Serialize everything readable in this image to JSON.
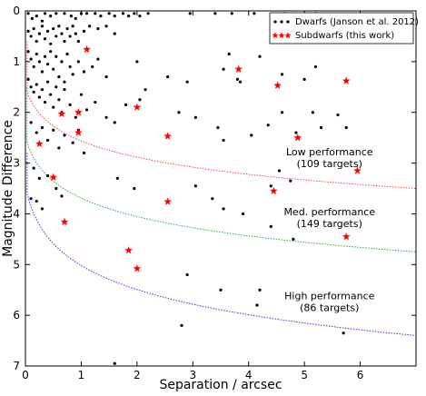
{
  "chart_data": {
    "type": "scatter",
    "title": "",
    "xlabel": "Separation / arcsec",
    "ylabel": "Magnitude Difference",
    "xlim": [
      0,
      7
    ],
    "ylim": [
      0,
      7
    ],
    "y_inverted": true,
    "x_ticks": [
      0,
      1,
      2,
      3,
      4,
      5,
      6
    ],
    "y_ticks": [
      0,
      1,
      2,
      3,
      4,
      5,
      6,
      7
    ],
    "grid": false,
    "legend_placement": "top-right",
    "legend": [
      {
        "label": "Dwarfs (Janson et al. 2012)",
        "marker": "dot",
        "color": "#000000"
      },
      {
        "label": "Subdwarfs (this work)",
        "marker": "star",
        "color": "#ff0000"
      }
    ],
    "series": [
      {
        "name": "Dwarfs (Janson et al. 2012)",
        "marker": "dot",
        "color": "#000000",
        "points": [
          [
            0.05,
            0.05
          ],
          [
            0.12,
            0.15
          ],
          [
            0.2,
            0.1
          ],
          [
            0.3,
            0.2
          ],
          [
            0.35,
            0.05
          ],
          [
            0.45,
            0.1
          ],
          [
            0.55,
            0.05
          ],
          [
            0.7,
            0.05
          ],
          [
            0.82,
            0.1
          ],
          [
            0.9,
            0.15
          ],
          [
            1.0,
            0.05
          ],
          [
            1.1,
            0.05
          ],
          [
            1.25,
            0.05
          ],
          [
            1.35,
            0.1
          ],
          [
            1.5,
            0.05
          ],
          [
            1.6,
            0.1
          ],
          [
            1.75,
            0.05
          ],
          [
            1.85,
            0.1
          ],
          [
            1.95,
            0.05
          ],
          [
            2.05,
            0.1
          ],
          [
            2.2,
            0.05
          ],
          [
            2.95,
            0.05
          ],
          [
            3.4,
            0.05
          ],
          [
            3.7,
            0.05
          ],
          [
            4.1,
            0.05
          ],
          [
            4.65,
            0.05
          ],
          [
            5.2,
            0.05
          ],
          [
            0.05,
            0.4
          ],
          [
            0.1,
            0.5
          ],
          [
            0.15,
            0.35
          ],
          [
            0.2,
            0.6
          ],
          [
            0.25,
            0.45
          ],
          [
            0.3,
            0.3
          ],
          [
            0.35,
            0.55
          ],
          [
            0.4,
            0.4
          ],
          [
            0.45,
            0.65
          ],
          [
            0.5,
            0.35
          ],
          [
            0.55,
            0.5
          ],
          [
            0.6,
            0.3
          ],
          [
            0.65,
            0.45
          ],
          [
            0.7,
            0.6
          ],
          [
            0.75,
            0.35
          ],
          [
            0.8,
            0.5
          ],
          [
            0.85,
            0.3
          ],
          [
            0.9,
            0.45
          ],
          [
            0.95,
            0.6
          ],
          [
            1.05,
            0.4
          ],
          [
            1.15,
            0.3
          ],
          [
            1.3,
            0.35
          ],
          [
            1.45,
            0.3
          ],
          [
            1.6,
            0.45
          ],
          [
            0.05,
            0.8
          ],
          [
            0.1,
            0.95
          ],
          [
            0.15,
            1.1
          ],
          [
            0.2,
            0.85
          ],
          [
            0.25,
            1.0
          ],
          [
            0.3,
            1.2
          ],
          [
            0.35,
            0.9
          ],
          [
            0.4,
            1.05
          ],
          [
            0.45,
            0.8
          ],
          [
            0.5,
            1.15
          ],
          [
            0.55,
            0.9
          ],
          [
            0.6,
            1.3
          ],
          [
            0.65,
            1.0
          ],
          [
            0.7,
            1.4
          ],
          [
            0.75,
            0.85
          ],
          [
            0.8,
            1.1
          ],
          [
            0.85,
            1.25
          ],
          [
            0.95,
            1.0
          ],
          [
            1.05,
            1.2
          ],
          [
            1.2,
            1.1
          ],
          [
            1.3,
            0.95
          ],
          [
            1.45,
            1.3
          ],
          [
            0.05,
            1.35
          ],
          [
            0.1,
            1.5
          ],
          [
            0.15,
            1.6
          ],
          [
            0.2,
            1.45
          ],
          [
            0.25,
            1.7
          ],
          [
            0.3,
            1.55
          ],
          [
            0.35,
            1.8
          ],
          [
            0.4,
            1.4
          ],
          [
            0.45,
            1.65
          ],
          [
            0.5,
            1.9
          ],
          [
            0.55,
            1.5
          ],
          [
            0.6,
            1.75
          ],
          [
            0.65,
            2.0
          ],
          [
            0.7,
            1.55
          ],
          [
            0.8,
            1.85
          ],
          [
            0.9,
            2.1
          ],
          [
            1.0,
            1.65
          ],
          [
            1.1,
            1.95
          ],
          [
            1.25,
            1.8
          ],
          [
            1.45,
            2.1
          ],
          [
            1.6,
            2.2
          ],
          [
            1.8,
            1.85
          ],
          [
            2.05,
            1.75
          ],
          [
            2.15,
            1.55
          ],
          [
            0.1,
            2.2
          ],
          [
            0.2,
            2.4
          ],
          [
            0.3,
            2.3
          ],
          [
            0.4,
            2.55
          ],
          [
            0.5,
            2.35
          ],
          [
            0.6,
            2.7
          ],
          [
            0.7,
            2.45
          ],
          [
            0.85,
            2.6
          ],
          [
            0.95,
            2.35
          ],
          [
            1.05,
            2.8
          ],
          [
            0.15,
            3.1
          ],
          [
            0.25,
            3.3
          ],
          [
            0.4,
            3.25
          ],
          [
            0.55,
            3.5
          ],
          [
            0.65,
            3.65
          ],
          [
            0.1,
            3.7
          ],
          [
            0.2,
            3.75
          ],
          [
            0.3,
            3.9
          ],
          [
            2.0,
            1.0
          ],
          [
            2.55,
            1.3
          ],
          [
            2.9,
            1.4
          ],
          [
            3.55,
            1.15
          ],
          [
            3.65,
            0.85
          ],
          [
            3.8,
            1.35
          ],
          [
            3.85,
            1.4
          ],
          [
            4.2,
            0.9
          ],
          [
            4.6,
            1.25
          ],
          [
            5.0,
            1.35
          ],
          [
            5.2,
            1.1
          ],
          [
            2.75,
            2.0
          ],
          [
            3.05,
            2.1
          ],
          [
            3.45,
            2.3
          ],
          [
            3.55,
            2.55
          ],
          [
            4.05,
            2.45
          ],
          [
            4.35,
            2.25
          ],
          [
            4.6,
            2.0
          ],
          [
            4.85,
            2.4
          ],
          [
            5.15,
            2.0
          ],
          [
            5.3,
            2.3
          ],
          [
            5.6,
            2.05
          ],
          [
            5.75,
            2.3
          ],
          [
            4.55,
            3.15
          ],
          [
            4.4,
            3.45
          ],
          [
            4.75,
            3.35
          ],
          [
            1.65,
            3.3
          ],
          [
            1.95,
            3.5
          ],
          [
            3.05,
            3.45
          ],
          [
            3.35,
            3.7
          ],
          [
            3.55,
            3.9
          ],
          [
            3.9,
            4.0
          ],
          [
            4.4,
            4.25
          ],
          [
            4.8,
            4.5
          ],
          [
            2.9,
            5.2
          ],
          [
            3.5,
            5.5
          ],
          [
            4.2,
            5.5
          ],
          [
            4.15,
            5.8
          ],
          [
            2.8,
            6.2
          ],
          [
            5.7,
            6.35
          ],
          [
            1.6,
            6.95
          ]
        ]
      },
      {
        "name": "Subdwarfs (this work)",
        "marker": "star",
        "color": "#ff0000",
        "points": [
          [
            1.1,
            0.76
          ],
          [
            0.65,
            2.03
          ],
          [
            0.95,
            2.0
          ],
          [
            0.95,
            2.4
          ],
          [
            0.25,
            2.62
          ],
          [
            2.0,
            1.9
          ],
          [
            2.55,
            2.47
          ],
          [
            3.82,
            1.15
          ],
          [
            4.52,
            1.47
          ],
          [
            5.75,
            1.38
          ],
          [
            4.88,
            2.5
          ],
          [
            5.95,
            3.15
          ],
          [
            4.45,
            3.55
          ],
          [
            0.5,
            3.28
          ],
          [
            0.7,
            4.16
          ],
          [
            2.55,
            3.76
          ],
          [
            1.85,
            4.72
          ],
          [
            2.0,
            5.08
          ],
          [
            5.75,
            4.45
          ]
        ]
      }
    ],
    "curves": [
      {
        "name": "Low performance",
        "color": "#ff4444",
        "x_start": 0.03,
        "y_start": 1.6,
        "y_end": 3.5
      },
      {
        "name": "Med. performance",
        "color": "#33aa33",
        "x_start": 0.03,
        "y_start": 2.6,
        "y_end": 4.75
      },
      {
        "name": "High performance",
        "color": "#3333ff",
        "x_start": 0.03,
        "y_start": 3.6,
        "y_end": 6.4
      }
    ],
    "annotations": [
      {
        "line1": "Low performance",
        "line2": "(109 targets)",
        "x": 5.45,
        "y": 2.85
      },
      {
        "line1": "Med. performance",
        "line2": "(149 targets)",
        "x": 5.45,
        "y": 4.03
      },
      {
        "line1": "High performance",
        "line2": "(86 targets)",
        "x": 5.45,
        "y": 5.68
      }
    ]
  }
}
